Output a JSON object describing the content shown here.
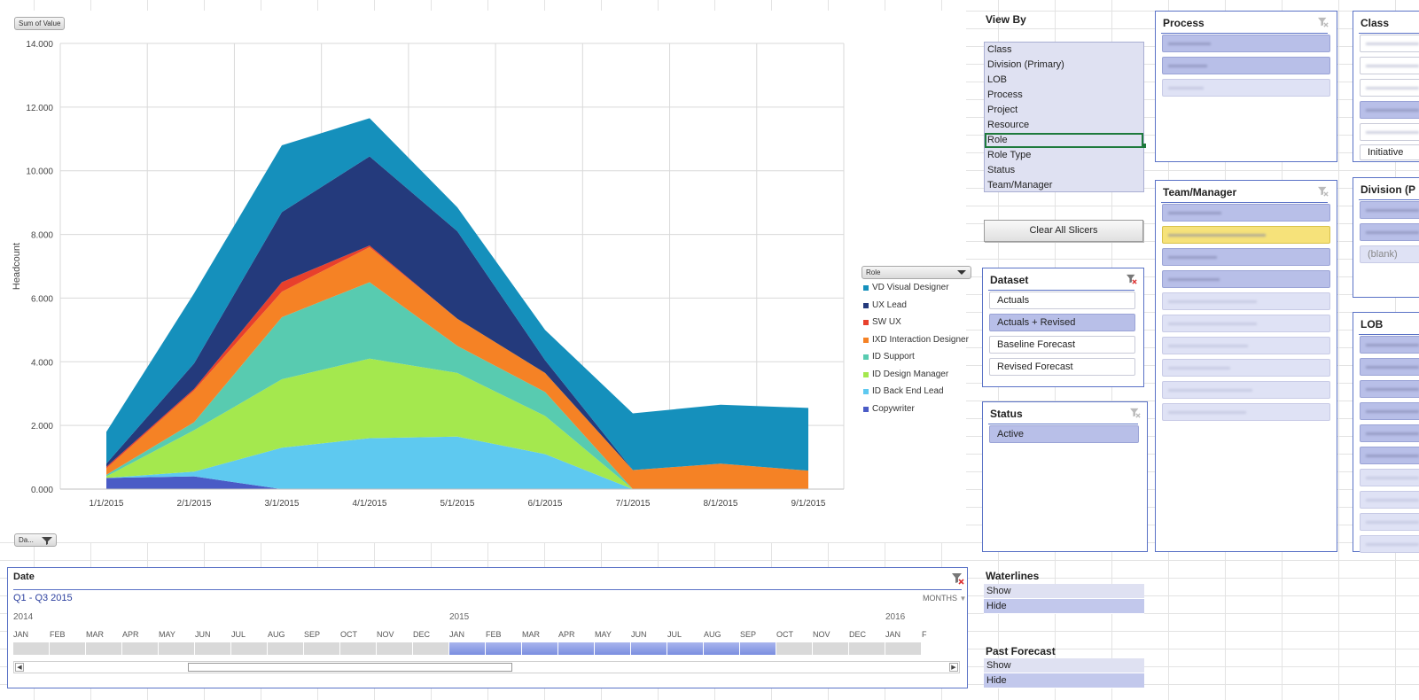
{
  "chart": {
    "pivot_value_button": "Sum of Value",
    "pivot_date_button": "Da...",
    "legend_title": "Role"
  },
  "chart_data": {
    "type": "area",
    "stacked": true,
    "ylabel": "Headcount",
    "xlabel": "",
    "ylim": [
      0,
      14
    ],
    "y_ticks": [
      "0.000",
      "2.000",
      "4.000",
      "6.000",
      "8.000",
      "10.000",
      "12.000",
      "14.000"
    ],
    "categories": [
      "1/1/2015",
      "2/1/2015",
      "3/1/2015",
      "4/1/2015",
      "5/1/2015",
      "6/1/2015",
      "7/1/2015",
      "8/1/2015",
      "9/1/2015"
    ],
    "grid": true,
    "legend_position": "right",
    "series": [
      {
        "name": "Copywriter",
        "color": "#4a5bc6",
        "values": [
          0.35,
          0.4,
          0,
          0,
          0,
          0,
          0,
          0,
          0
        ]
      },
      {
        "name": "ID Back End Lead",
        "color": "#5ec9f0",
        "values": [
          0,
          0.15,
          1.3,
          1.6,
          1.65,
          1.1,
          0,
          0,
          0
        ]
      },
      {
        "name": "ID Design Manager",
        "color": "#a4e84e",
        "values": [
          0.05,
          1.3,
          2.15,
          2.5,
          2.0,
          1.2,
          0,
          0,
          0
        ]
      },
      {
        "name": "ID Support",
        "color": "#58cbb0",
        "values": [
          0.05,
          0.25,
          1.95,
          2.4,
          0.85,
          0.75,
          0,
          0,
          0
        ]
      },
      {
        "name": "IXD Interaction Designer",
        "color": "#f58225",
        "values": [
          0.2,
          1.0,
          0.8,
          1.1,
          0.85,
          0.6,
          0.6,
          0.8,
          0.58
        ]
      },
      {
        "name": "SW UX",
        "color": "#e8402c",
        "values": [
          0.05,
          0.05,
          0.3,
          0.05,
          0,
          0,
          0,
          0,
          0
        ]
      },
      {
        "name": "UX Lead",
        "color": "#243a7c",
        "values": [
          0.1,
          0.8,
          2.2,
          2.8,
          2.75,
          0.4,
          0,
          0,
          0
        ]
      },
      {
        "name": "VD Visual Designer",
        "color": "#1590bc",
        "values": [
          1.0,
          2.2,
          2.1,
          1.2,
          0.75,
          0.95,
          1.78,
          1.85,
          1.97
        ]
      }
    ]
  },
  "date_slicer": {
    "title": "Date",
    "range_label": "Q1 - Q3 2015",
    "level_label": "MONTHS",
    "years": [
      "2014",
      "2015",
      "2016"
    ],
    "months": [
      "JAN",
      "FEB",
      "MAR",
      "APR",
      "MAY",
      "JUN",
      "JUL",
      "AUG",
      "SEP",
      "OCT",
      "NOV",
      "DEC",
      "JAN",
      "FEB",
      "MAR",
      "APR",
      "MAY",
      "JUN",
      "JUL",
      "AUG",
      "SEP",
      "OCT",
      "NOV",
      "DEC",
      "JAN",
      "F"
    ],
    "selected_start_index": 12,
    "selected_end_index": 20
  },
  "view_by": {
    "title": "View By",
    "items": [
      "Class",
      "Division (Primary)",
      "LOB",
      "Process",
      "Project",
      "Resource",
      "Role",
      "Role Type",
      "Status",
      "Team/Manager"
    ],
    "active_index": 6
  },
  "clear_all_label": "Clear All Slicers",
  "dataset": {
    "title": "Dataset",
    "items": [
      "Actuals",
      "Actuals + Revised",
      "Baseline Forecast",
      "Revised Forecast"
    ],
    "selected_index": 1
  },
  "status": {
    "title": "Status",
    "items": [
      "Active"
    ]
  },
  "waterlines": {
    "title": "Waterlines",
    "items": [
      "Show",
      "Hide"
    ]
  },
  "past_forecast": {
    "title": "Past Forecast",
    "items": [
      "Show",
      "Hide"
    ]
  },
  "process": {
    "title": "Process"
  },
  "team_manager": {
    "title": "Team/Manager"
  },
  "class_slicer": {
    "title": "Class",
    "visible_item": "Initiative"
  },
  "division": {
    "title": "Division (P",
    "blank_item": "(blank)"
  },
  "lob": {
    "title": "LOB"
  },
  "colors": {
    "slicer_border": "#5a72c6",
    "selected_item": "#b8bfe8",
    "highlight_item": "#f6e27a",
    "timeline_selected": "#7b8ee0"
  }
}
